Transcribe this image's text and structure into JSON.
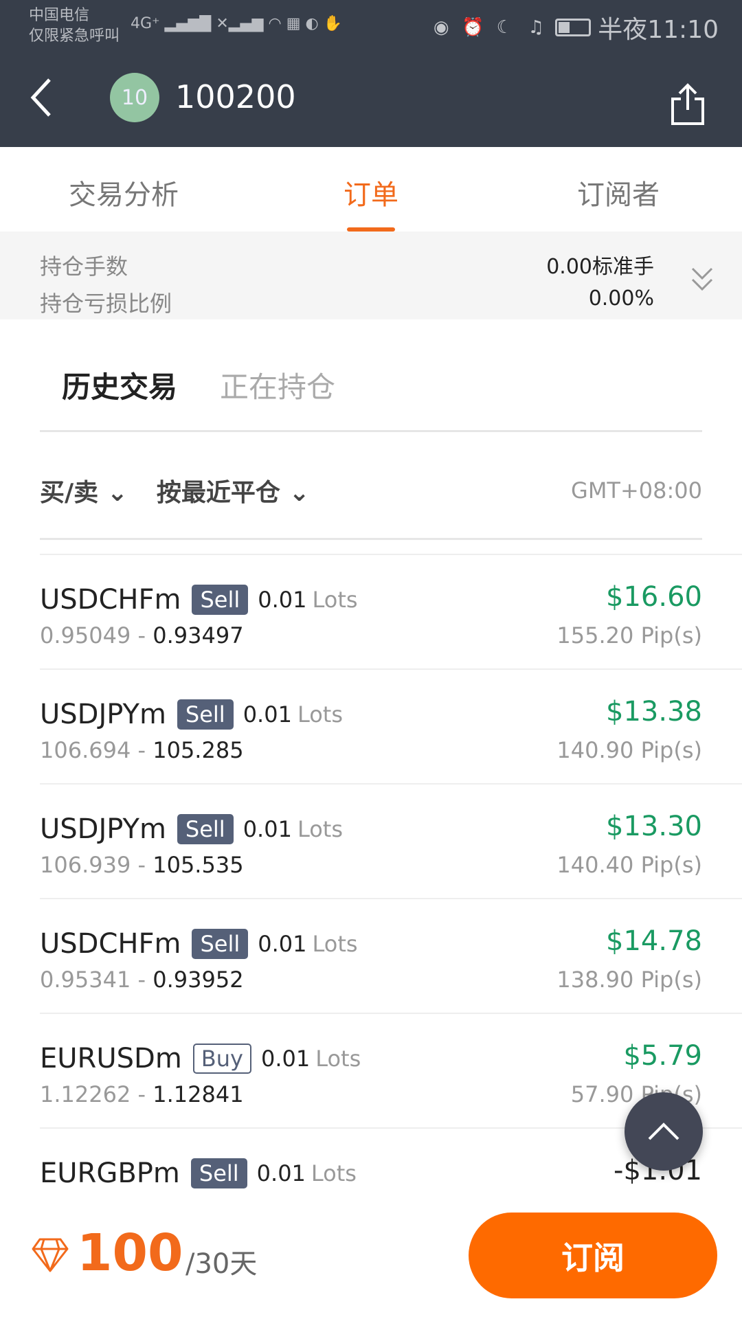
{
  "status_bar": {
    "carrier_line1": "中国电信",
    "carrier_line2": "仅限紧急呼叫",
    "network": "4G⁺ ▂▄▆█ ✕▂▄▆ ◠ ▦ ◐ ✋",
    "time": "半夜11:10"
  },
  "header": {
    "avatar_level": "10",
    "title": "100200"
  },
  "tabs": [
    {
      "label": "交易分析"
    },
    {
      "label": "订单"
    },
    {
      "label": "订阅者"
    }
  ],
  "summary": {
    "lots_label": "持仓手数",
    "lots_value": "0.00标准手",
    "ratio_label": "持仓亏损比例",
    "ratio_value": "0.00%"
  },
  "subtabs": {
    "history": "历史交易",
    "open": "正在持仓"
  },
  "filters": {
    "side": "买/卖",
    "sort": "按最近平仓",
    "timezone": "GMT+08:00"
  },
  "orders": [
    {
      "symbol": "USDCHFm",
      "side": "Sell",
      "lots": "0.01",
      "lots_unit": "Lots",
      "open": "0.95049",
      "close": "0.93497",
      "profit": "$16.60",
      "pips": "155.20 Pip(s)"
    },
    {
      "symbol": "USDJPYm",
      "side": "Sell",
      "lots": "0.01",
      "lots_unit": "Lots",
      "open": "106.694",
      "close": "105.285",
      "profit": "$13.38",
      "pips": "140.90 Pip(s)"
    },
    {
      "symbol": "USDJPYm",
      "side": "Sell",
      "lots": "0.01",
      "lots_unit": "Lots",
      "open": "106.939",
      "close": "105.535",
      "profit": "$13.30",
      "pips": "140.40 Pip(s)"
    },
    {
      "symbol": "USDCHFm",
      "side": "Sell",
      "lots": "0.01",
      "lots_unit": "Lots",
      "open": "0.95341",
      "close": "0.93952",
      "profit": "$14.78",
      "pips": "138.90 Pip(s)"
    },
    {
      "symbol": "EURUSDm",
      "side": "Buy",
      "lots": "0.01",
      "lots_unit": "Lots",
      "open": "1.12262",
      "close": "1.12841",
      "profit": "$5.79",
      "pips": "57.90 Pip(s)"
    },
    {
      "symbol": "EURGBPm",
      "side": "Sell",
      "lots": "0.01",
      "lots_unit": "Lots",
      "open": "",
      "close": "",
      "profit": "-$1.01",
      "pips": ""
    }
  ],
  "bottom": {
    "price": "100",
    "period": "/30天",
    "subscribe": "订阅"
  },
  "colors": {
    "accent": "#f26a1b",
    "profit": "#1a9a62",
    "header_bg": "#373e4a",
    "badge": "#556078"
  }
}
